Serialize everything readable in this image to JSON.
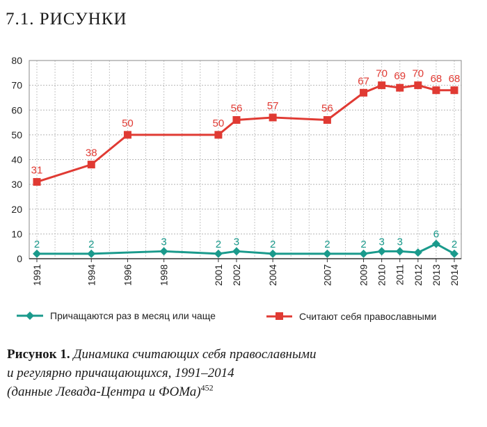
{
  "heading": "7.1. РИСУНКИ",
  "chart_data": {
    "type": "line",
    "ylim": [
      0,
      80
    ],
    "yticks": [
      0,
      10,
      20,
      30,
      40,
      50,
      60,
      70,
      80
    ],
    "xlim": [
      1991,
      2014
    ],
    "x_tick_labels": [
      "1991",
      "1994",
      "1996",
      "1998",
      "2001",
      "2002",
      "2004",
      "2007",
      "2009",
      "2010",
      "2011",
      "2012",
      "2013",
      "2014"
    ],
    "grid": true,
    "series": [
      {
        "name": "Считают себя православными",
        "color": "#e03a33",
        "marker": "square",
        "x": [
          1991,
          1994,
          1996,
          2001,
          2002,
          2004,
          2007,
          2009,
          2010,
          2011,
          2012,
          2013,
          2014
        ],
        "values": [
          31,
          38,
          50,
          50,
          56,
          57,
          56,
          67,
          70,
          69,
          70,
          68,
          68
        ],
        "labels": [
          "31",
          "38",
          "50",
          "50",
          "56",
          "57",
          "56",
          "67",
          "70",
          "69",
          "70",
          "68",
          "68"
        ]
      },
      {
        "name": "Причащаются раз в месяц или чаще",
        "color": "#1a9a8c",
        "marker": "diamond",
        "x": [
          1991,
          1994,
          1998,
          2001,
          2002,
          2004,
          2007,
          2009,
          2010,
          2011,
          2012,
          2013,
          2014
        ],
        "values": [
          2,
          2,
          3,
          2,
          3,
          2,
          2,
          2,
          3,
          3,
          2.5,
          6,
          2
        ],
        "labels": [
          "2",
          "2",
          "3",
          "2",
          "3",
          "2",
          "2",
          "2",
          "3",
          "3",
          "",
          "6",
          "2"
        ]
      }
    ]
  },
  "legend": {
    "communion": "Причащаются раз в месяц или чаще",
    "orthodox": "Считают себя православными"
  },
  "caption": {
    "label": "Рисунок 1.",
    "line1": "Динамика считающих себя православными",
    "line2": "и регулярно причащающихся, 1991–2014",
    "line3": "(данные Левада-Центра и ФОМа)",
    "footnote": "452"
  }
}
